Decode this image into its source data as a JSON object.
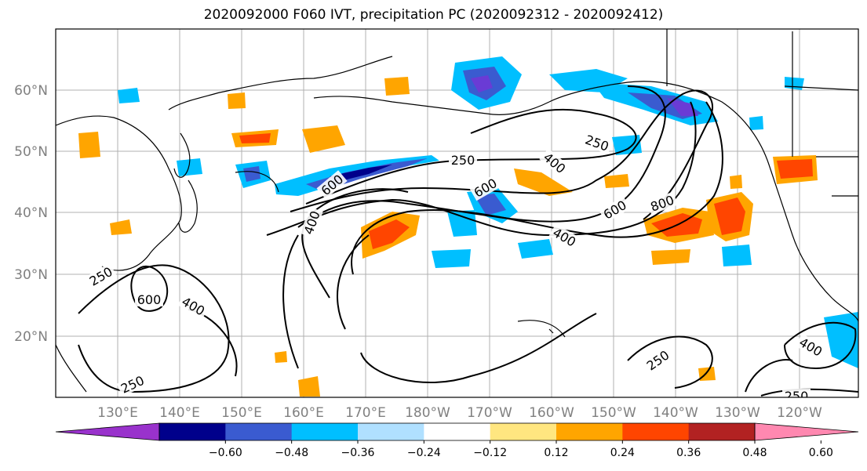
{
  "title": "2020092000 F060 IVT, precipitation PC (2020092312 - 2020092412)",
  "map": {
    "lon_labels": [
      "130°E",
      "140°E",
      "150°E",
      "160°E",
      "170°E",
      "180°W",
      "170°W",
      "160°W",
      "150°W",
      "140°W",
      "130°W",
      "120°W"
    ],
    "lat_labels": [
      "60°N",
      "50°N",
      "40°N",
      "30°N",
      "20°N"
    ],
    "grid": true,
    "contour_labels": [
      "250",
      "600",
      "400",
      "250",
      "600",
      "400",
      "600",
      "800",
      "250",
      "400",
      "600",
      "400",
      "250",
      "400",
      "250",
      "250"
    ]
  },
  "colorbar": {
    "ticks": [
      "−0.60",
      "−0.48",
      "−0.36",
      "−0.24",
      "−0.12",
      "0.12",
      "0.24",
      "0.36",
      "0.48",
      "0.60"
    ],
    "colors": [
      "#9932cc",
      "#00008b",
      "#3a5bd0",
      "#00bfff",
      "#b0e0ff",
      "#ffffff",
      "#ffe680",
      "#ffa500",
      "#ff4500",
      "#b22222",
      "#ff88b0"
    ],
    "extend": "both"
  }
}
